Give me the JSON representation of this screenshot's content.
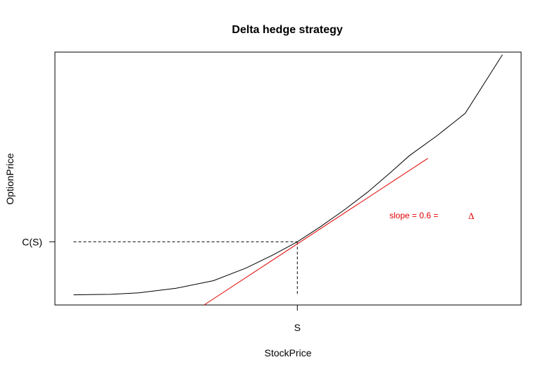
{
  "chart_data": {
    "type": "line",
    "title": "Delta hedge strategy",
    "xlabel": "StockPrice",
    "ylabel": "OptionPrice",
    "xlim": [
      0,
      100
    ],
    "ylim": [
      0,
      100
    ],
    "x_ticks": [
      {
        "value": 52,
        "label": "S"
      }
    ],
    "y_ticks": [
      {
        "value": 25,
        "label": "C(S)"
      }
    ],
    "grid": false,
    "series": [
      {
        "color": "#000000",
        "x": [
          4,
          12,
          18,
          26,
          34,
          41,
          47,
          52,
          57,
          62,
          67,
          72,
          76,
          82,
          88,
          96
        ],
        "y": [
          4,
          4.2,
          4.8,
          6.6,
          9.6,
          14.6,
          20,
          25,
          31,
          37.5,
          44.5,
          52.4,
          59,
          67,
          75.8,
          99
        ]
      },
      {
        "color": "#e00000",
        "x": [
          32,
          80
        ],
        "y": [
          0,
          58
        ]
      }
    ],
    "guides": {
      "color": "#000000",
      "style": "dashed",
      "point": {
        "x": 52,
        "y": 25
      }
    },
    "annotation": {
      "text": "slope = 0.6 =",
      "symbol": "Δ",
      "color": "#e00000"
    }
  }
}
